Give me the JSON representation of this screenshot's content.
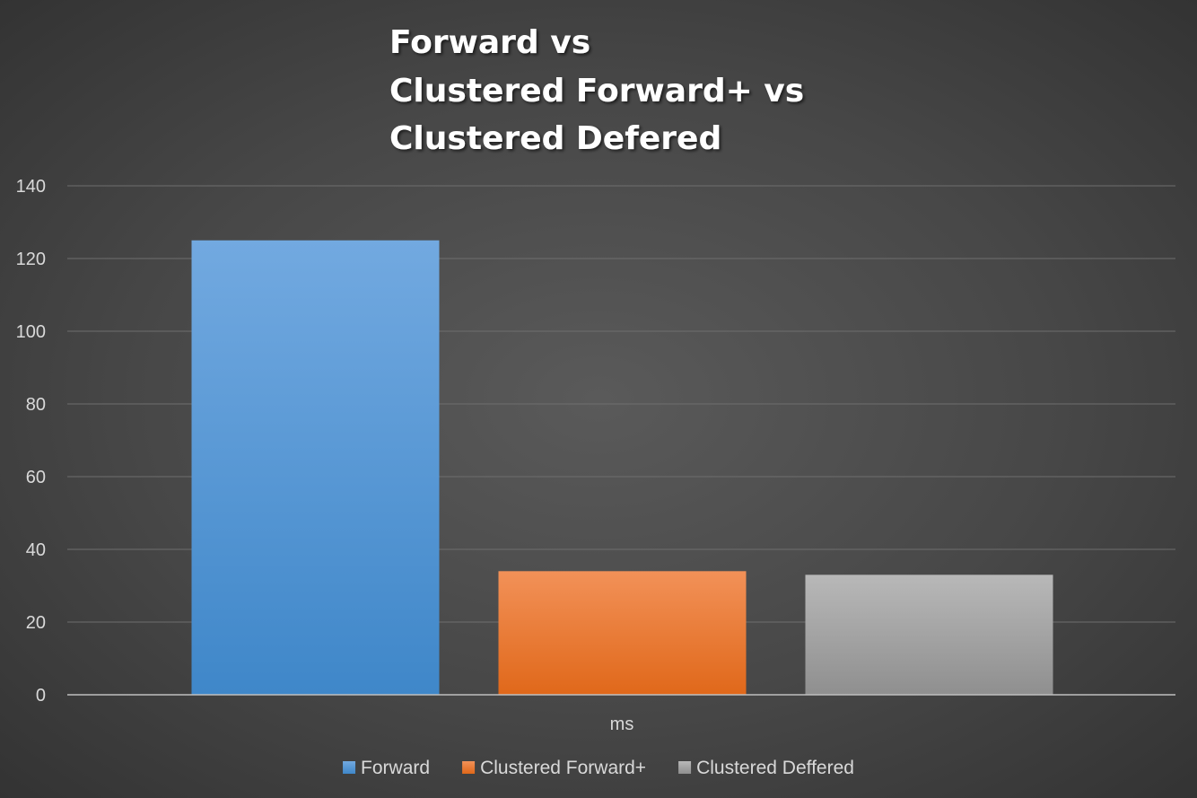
{
  "chart_data": {
    "type": "bar",
    "title_lines": [
      "Forward vs",
      "Clustered Forward+ vs",
      "Clustered Defered"
    ],
    "categories": [
      "ms"
    ],
    "xlabel": "ms",
    "ylabel": "",
    "ylim": [
      0,
      140
    ],
    "yticks": [
      0,
      20,
      40,
      60,
      80,
      100,
      120,
      140
    ],
    "grid": true,
    "legend_position": "bottom",
    "series": [
      {
        "name": "Forward",
        "values": [
          125
        ],
        "color": "#5b9bd5"
      },
      {
        "name": "Clustered Forward+",
        "values": [
          34
        ],
        "color": "#ed7d31"
      },
      {
        "name": "Clustered Deffered",
        "values": [
          33
        ],
        "color": "#a5a5a5"
      }
    ]
  }
}
